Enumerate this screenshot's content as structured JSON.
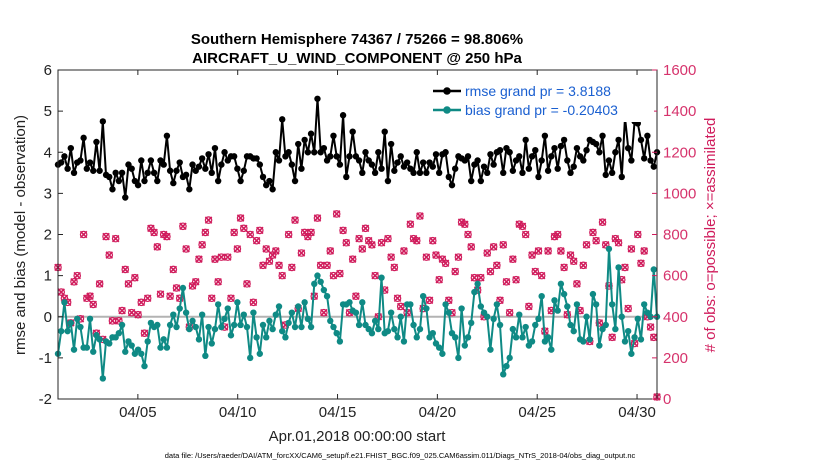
{
  "chart_data": {
    "type": "line",
    "title_line1": "Southern Hemisphere 74367 / 75266 = 98.806%",
    "title_line2": "AIRCRAFT_U_WIND_COMPONENT @ 250 hPa",
    "xlabel": "Apr.01,2018 00:00:00 start",
    "ylabel_left": "rmse and bias (model - observation)",
    "ylabel_right": "# of obs: o=possible; ×=assimilated",
    "footnote": "data file: /Users/raeder/DAI/ATM_forcXX/CAM6_setup/f.e21.FHIST_BGC.f09_025.CAM6assim.011/Diags_NTrS_2018-04/obs_diag_output.nc",
    "xlim": [
      1,
      31
    ],
    "ylim_left": [
      -2,
      6
    ],
    "ylim_right": [
      0,
      1600
    ],
    "x_ticks": [
      {
        "value": 5,
        "label": "04/05"
      },
      {
        "value": 10,
        "label": "04/10"
      },
      {
        "value": 15,
        "label": "04/15"
      },
      {
        "value": 20,
        "label": "04/20"
      },
      {
        "value": 25,
        "label": "04/25"
      },
      {
        "value": 30,
        "label": "04/30"
      }
    ],
    "y_left_ticks": [
      "-2",
      "-1",
      "0",
      "1",
      "2",
      "3",
      "4",
      "5",
      "6"
    ],
    "y_right_ticks": [
      "0",
      "200",
      "400",
      "600",
      "800",
      "1000",
      "1200",
      "1400",
      "1600"
    ],
    "colors": {
      "rmse": "#000000",
      "bias": "#0f8a85",
      "obs": "#d01c5c",
      "legend_text": "#1a5fd0",
      "zero_line": "#b3b3b3"
    },
    "series": [
      {
        "name": "rmse grand pr = 3.8188",
        "axis": "left",
        "values": [
          3.7,
          3.75,
          3.9,
          3.6,
          4.1,
          3.5,
          3.75,
          3.8,
          4.35,
          3.6,
          3.75,
          3.55,
          4.25,
          3.55,
          4.75,
          3.45,
          3.4,
          3.1,
          3.5,
          3.3,
          3.5,
          2.9,
          3.7,
          3.6,
          3.3,
          3.2,
          3.8,
          3.3,
          3.5,
          3.8,
          3.5,
          3.3,
          3.8,
          3.7,
          4.4,
          3.55,
          3.25,
          3.55,
          3.75,
          3.4,
          3.45,
          3.1,
          3.7,
          3.55,
          3.65,
          3.85,
          3.6,
          3.95,
          3.5,
          4.1,
          3.3,
          3.7,
          4.0,
          3.8,
          3.9,
          3.9,
          3.6,
          3.3,
          3.55,
          3.9,
          3.9,
          3.85,
          3.85,
          3.7,
          3.4,
          3.2,
          3.3,
          3.1,
          4.0,
          3.8,
          4.8,
          3.9,
          4.0,
          3.7,
          3.3,
          4.2,
          3.6,
          4.3,
          4.0,
          4.45,
          4.0,
          5.3,
          4.0,
          4.1,
          3.8,
          3.9,
          4.4,
          3.9,
          3.7,
          4.9,
          3.4,
          3.9,
          4.5,
          3.9,
          3.8,
          3.5,
          4.0,
          3.8,
          3.7,
          3.5,
          4.0,
          3.6,
          4.5,
          3.3,
          4.2,
          3.55,
          3.75,
          3.9,
          3.65,
          3.75,
          3.6,
          3.5,
          4.0,
          3.5,
          3.75,
          3.5,
          3.75,
          3.65,
          3.95,
          3.5,
          3.95,
          4.0,
          3.4,
          3.2,
          3.6,
          3.9,
          3.85,
          3.8,
          3.9,
          3.3,
          3.7,
          3.8,
          3.3,
          3.65,
          3.5,
          3.95,
          3.7,
          4.0,
          4.05,
          3.5,
          4.1,
          4.0,
          3.55,
          3.8,
          3.9,
          3.5,
          4.3,
          3.6,
          3.9,
          4.05,
          3.4,
          3.8,
          4.4,
          3.55,
          3.9,
          4.1,
          3.6,
          4.15,
          4.3,
          3.8,
          3.5,
          3.65,
          4.1,
          3.9,
          3.8,
          4.05,
          4.3,
          4.25,
          4.2,
          4.0,
          4.4,
          3.45,
          3.8,
          3.5,
          4.0,
          4.3,
          3.4,
          4.85,
          4.1,
          3.8,
          4.75,
          4.7,
          4.3,
          3.85,
          4.4,
          3.8,
          3.65,
          4.0
        ]
      },
      {
        "name": "bias grand pr = -0.20403",
        "axis": "left",
        "values": [
          -0.9,
          -0.35,
          0.35,
          -0.35,
          -0.15,
          -0.8,
          -0.05,
          -0.25,
          -0.75,
          -0.75,
          -0.05,
          -0.85,
          -0.45,
          -0.55,
          -1.5,
          -0.6,
          -0.65,
          -0.5,
          -0.5,
          -0.4,
          -0.2,
          -0.85,
          -0.6,
          -0.7,
          -0.9,
          -0.8,
          -0.9,
          -1.2,
          -0.6,
          -0.15,
          -0.25,
          -0.2,
          -0.75,
          -0.55,
          -0.75,
          -0.2,
          0.05,
          -0.25,
          0.2,
          0.7,
          0.1,
          -0.3,
          -0.1,
          -0.25,
          -0.55,
          0.05,
          -0.95,
          -0.25,
          -0.65,
          -0.3,
          0.3,
          -0.25,
          -0.05,
          0.2,
          -0.45,
          -0.2,
          0.35,
          -0.2,
          0.05,
          -0.25,
          -1.0,
          0.1,
          -0.5,
          -0.9,
          -0.2,
          -0.5,
          -0.1,
          -0.3,
          0.05,
          0.25,
          -0.35,
          -0.5,
          -0.15,
          0.1,
          -0.25,
          0.25,
          -0.25,
          0.35,
          -0.05,
          -0.25,
          0.8,
          1.0,
          0.85,
          0.65,
          0.5,
          -0.1,
          -0.25,
          -0.4,
          -0.6,
          0.3,
          0.3,
          0.35,
          0.15,
          0.1,
          -0.2,
          0.35,
          -0.2,
          -0.3,
          -0.4,
          -0.1,
          -0.3,
          0.95,
          -0.4,
          -0.35,
          0.1,
          -0.3,
          -0.5,
          0.0,
          -0.6,
          0.3,
          0.3,
          -0.2,
          -0.5,
          -0.3,
          0.5,
          0.2,
          -0.5,
          -0.4,
          -0.65,
          -0.75,
          -0.9,
          0.3,
          0.1,
          -0.4,
          -0.5,
          -1.0,
          0.2,
          -0.7,
          -0.5,
          -0.15,
          0.6,
          0.8,
          0.25,
          0.1,
          0.0,
          -0.8,
          -0.05,
          0.3,
          -0.2,
          -1.4,
          -1.2,
          -1.0,
          -0.3,
          -0.5,
          0.05,
          -0.5,
          -0.25,
          -0.7,
          -0.6,
          -0.2,
          -0.05,
          0.5,
          -0.6,
          -0.5,
          -0.8,
          0.4,
          0.15,
          0.8,
          0.55,
          0.25,
          -0.2,
          -0.35,
          0.3,
          -0.55,
          -0.6,
          0.0,
          -0.55,
          0.55,
          0.3,
          -0.7,
          -0.3,
          -0.2,
          1.65,
          0.3,
          -0.3,
          1.2,
          0.0,
          -0.6,
          -0.35,
          -0.9,
          -0.5,
          -0.05,
          -0.55,
          0.3,
          0.1,
          0.0,
          1.15,
          0.0
        ]
      },
      {
        "name": "possible (o)",
        "axis": "right",
        "values": [
          640,
          520,
          490,
          470,
          370,
          570,
          600,
          390,
          800,
          490,
          500,
          460,
          320,
          560,
          290,
          790,
          700,
          380,
          780,
          380,
          430,
          630,
          560,
          420,
          590,
          410,
          470,
          320,
          490,
          830,
          810,
          740,
          510,
          800,
          790,
          500,
          630,
          540,
          490,
          840,
          730,
          350,
          550,
          570,
          680,
          750,
          810,
          870,
          490,
          680,
          570,
          690,
          350,
          690,
          490,
          810,
          730,
          880,
          830,
          560,
          800,
          470,
          770,
          820,
          650,
          730,
          670,
          700,
          720,
          650,
          600,
          360,
          800,
          640,
          870,
          440,
          710,
          810,
          790,
          810,
          500,
          880,
          650,
          420,
          650,
          720,
          600,
          900,
          610,
          820,
          760,
          420,
          680,
          500,
          780,
          730,
          830,
          770,
          750,
          600,
          400,
          760,
          530,
          780,
          690,
          640,
          490,
          450,
          720,
          420,
          850,
          780,
          770,
          890,
          440,
          690,
          480,
          770,
          700,
          580,
          680,
          660,
          480,
          420,
          620,
          690,
          860,
          850,
          800,
          740,
          590,
          530,
          590,
          400,
          710,
          620,
          740,
          650,
          480,
          750,
          570,
          420,
          680,
          580,
          850,
          840,
          800,
          450,
          700,
          620,
          720,
          600,
          330,
          720,
          430,
          790,
          800,
          720,
          640,
          410,
          700,
          670,
          560,
          430,
          650,
          750,
          280,
          810,
          770,
          370,
          860,
          750,
          550,
          300,
          780,
          760,
          580,
          640,
          440,
          730,
          270,
          800,
          660,
          720,
          400,
          350,
          300,
          10
        ]
      },
      {
        "name": "assimilated (×)",
        "axis": "right",
        "values": [
          640,
          520,
          490,
          470,
          370,
          570,
          600,
          390,
          800,
          490,
          500,
          460,
          320,
          560,
          290,
          790,
          700,
          380,
          780,
          380,
          430,
          630,
          560,
          420,
          590,
          410,
          470,
          320,
          490,
          830,
          810,
          740,
          510,
          800,
          790,
          500,
          630,
          540,
          490,
          840,
          730,
          350,
          550,
          570,
          680,
          750,
          810,
          870,
          490,
          680,
          570,
          690,
          350,
          690,
          490,
          810,
          730,
          880,
          830,
          560,
          800,
          470,
          770,
          820,
          650,
          730,
          670,
          700,
          720,
          650,
          600,
          360,
          800,
          640,
          870,
          440,
          710,
          810,
          790,
          810,
          500,
          880,
          650,
          420,
          650,
          720,
          600,
          900,
          610,
          820,
          760,
          420,
          680,
          500,
          780,
          730,
          830,
          770,
          750,
          600,
          400,
          760,
          530,
          780,
          690,
          640,
          490,
          450,
          720,
          420,
          850,
          780,
          770,
          890,
          440,
          690,
          480,
          770,
          700,
          580,
          680,
          660,
          480,
          420,
          620,
          690,
          860,
          850,
          800,
          740,
          590,
          530,
          590,
          400,
          710,
          620,
          740,
          650,
          480,
          750,
          570,
          420,
          680,
          580,
          850,
          840,
          800,
          450,
          700,
          620,
          720,
          600,
          330,
          720,
          430,
          790,
          800,
          720,
          640,
          410,
          700,
          670,
          560,
          430,
          650,
          750,
          280,
          810,
          770,
          370,
          860,
          750,
          550,
          300,
          780,
          760,
          580,
          640,
          440,
          730,
          270,
          800,
          660,
          720,
          400,
          350,
          300,
          10
        ]
      }
    ]
  }
}
